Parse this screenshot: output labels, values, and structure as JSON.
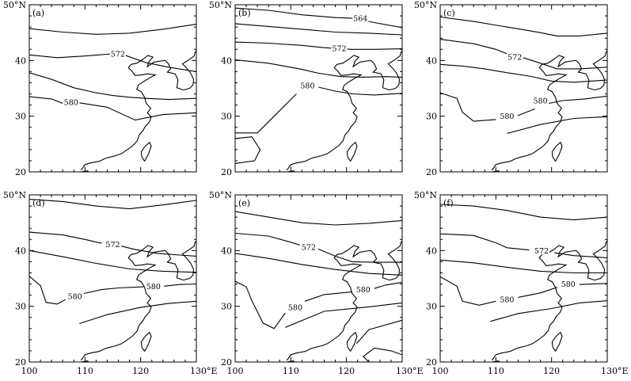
{
  "figure": {
    "lon_ticks": [
      "100",
      "110",
      "120",
      "130°E"
    ],
    "lat_ticks": [
      "50°N",
      "40",
      "30",
      "20"
    ]
  },
  "panels": [
    {
      "label": "(a)",
      "contour_labels": [
        {
          "text": "572",
          "lon": 115.9,
          "lat": 41.2
        },
        {
          "text": "580",
          "lon": 107.5,
          "lat": 32.5
        }
      ]
    },
    {
      "label": "(b)",
      "contour_labels": [
        {
          "text": "564",
          "lon": 122.5,
          "lat": 47.6
        },
        {
          "text": "572",
          "lon": 118.7,
          "lat": 42.2
        },
        {
          "text": "580",
          "lon": 113.0,
          "lat": 35.5
        }
      ]
    },
    {
      "label": "(c)",
      "contour_labels": [
        {
          "text": "572",
          "lon": 113.4,
          "lat": 40.6
        },
        {
          "text": "580",
          "lon": 118.0,
          "lat": 32.8
        },
        {
          "text": "580",
          "lon": 112.0,
          "lat": 30.0
        }
      ]
    },
    {
      "label": "(d)",
      "contour_labels": [
        {
          "text": "572",
          "lon": 115.0,
          "lat": 41.1
        },
        {
          "text": "580",
          "lon": 122.3,
          "lat": 33.6
        },
        {
          "text": "580",
          "lon": 108.2,
          "lat": 31.8
        }
      ]
    },
    {
      "label": "(e)",
      "contour_labels": [
        {
          "text": "572",
          "lon": 113.2,
          "lat": 40.6
        },
        {
          "text": "580",
          "lon": 123.0,
          "lat": 33.0
        },
        {
          "text": "580",
          "lon": 110.8,
          "lat": 29.8
        }
      ]
    },
    {
      "label": "(f)",
      "contour_labels": [
        {
          "text": "572",
          "lon": 118.2,
          "lat": 40.0
        },
        {
          "text": "580",
          "lon": 123.0,
          "lat": 34.0
        },
        {
          "text": "580",
          "lon": 112.0,
          "lat": 31.2
        }
      ]
    }
  ]
}
